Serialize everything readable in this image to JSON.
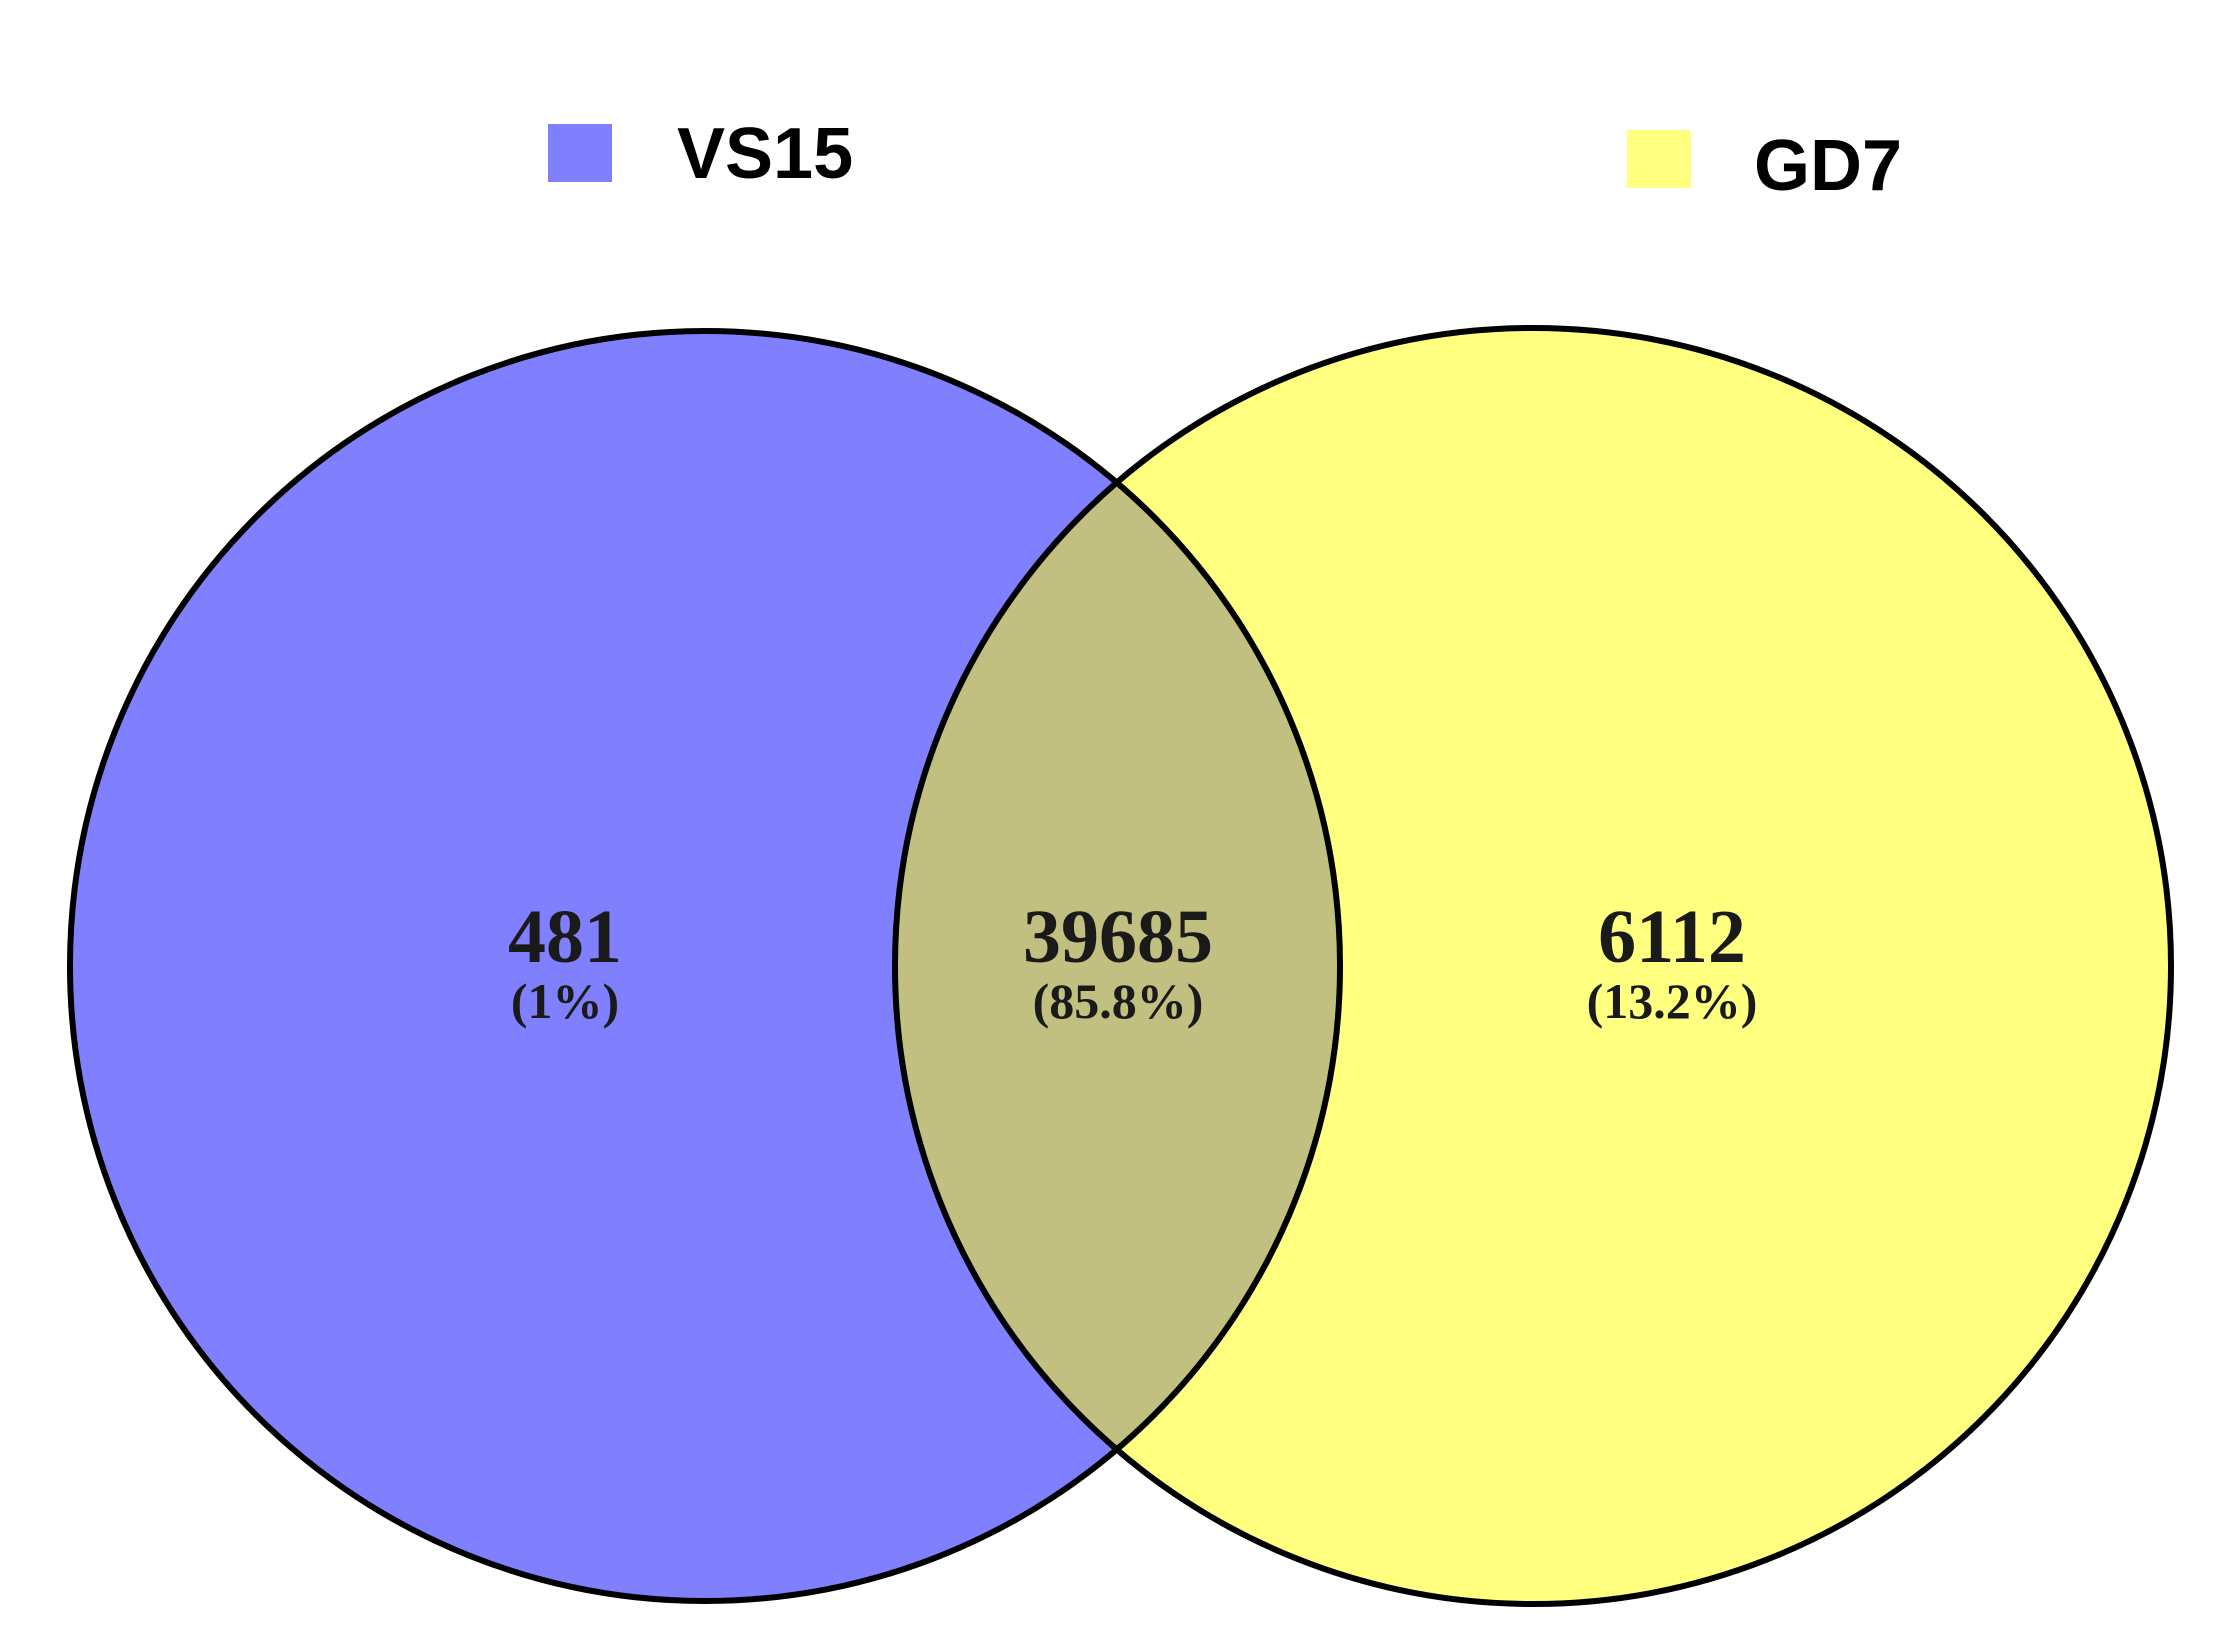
{
  "sets": [
    {
      "name": "VS15",
      "color": "#8080ff"
    },
    {
      "name": "GD7",
      "color": "#ffff80"
    }
  ],
  "overlap_color": "#c2c080",
  "outline_color": "#000000",
  "regions": {
    "vs15_only": {
      "count": "481",
      "percent": "(1%)"
    },
    "shared": {
      "count": "39685",
      "percent": "(85.8%)"
    },
    "gd7_only": {
      "count": "6112",
      "percent": "(13.2%)"
    }
  }
}
